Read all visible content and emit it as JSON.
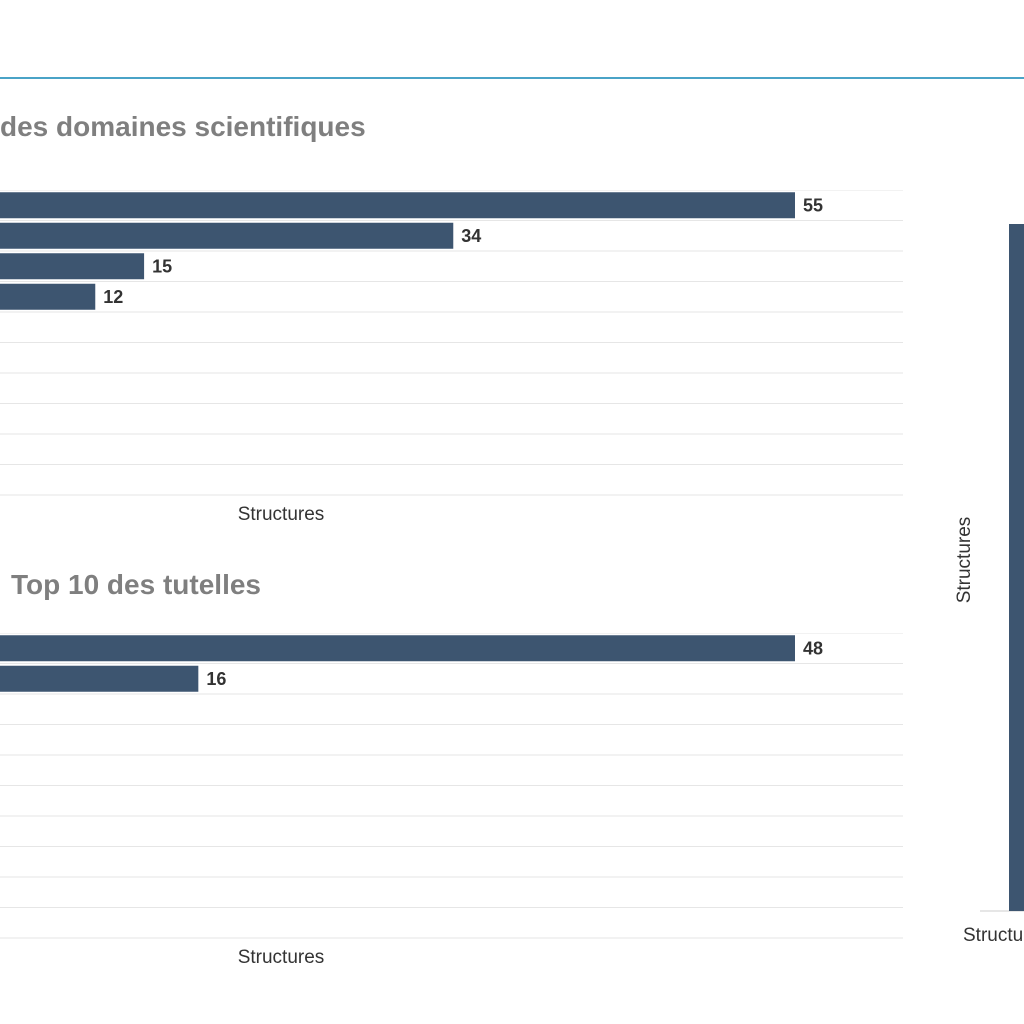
{
  "colors": {
    "bar": "#3d5570",
    "grid": "#e6e6e6",
    "divider": "#4aa3c7",
    "title": "#7f7f7f",
    "axis_text": "#333333"
  },
  "chart_data": [
    {
      "type": "bar",
      "orientation": "horizontal",
      "title": "des domaines scientifiques",
      "xlabel": "Structures",
      "values": [
        55,
        34,
        15,
        12
      ],
      "value_labels": [
        "55",
        "34",
        "15",
        "12"
      ],
      "xlim": [
        0,
        55
      ],
      "grid": true
    },
    {
      "type": "bar",
      "orientation": "horizontal",
      "title": "Top 10 des tutelles",
      "xlabel": "Structures",
      "values": [
        48,
        16
      ],
      "value_labels": [
        "48",
        "16"
      ],
      "xlim": [
        0,
        48
      ],
      "grid": true
    },
    {
      "type": "bar",
      "orientation": "vertical",
      "xlabel": "Structures",
      "ylabel": "Structures",
      "values": [
        1
      ],
      "grid": false
    }
  ]
}
